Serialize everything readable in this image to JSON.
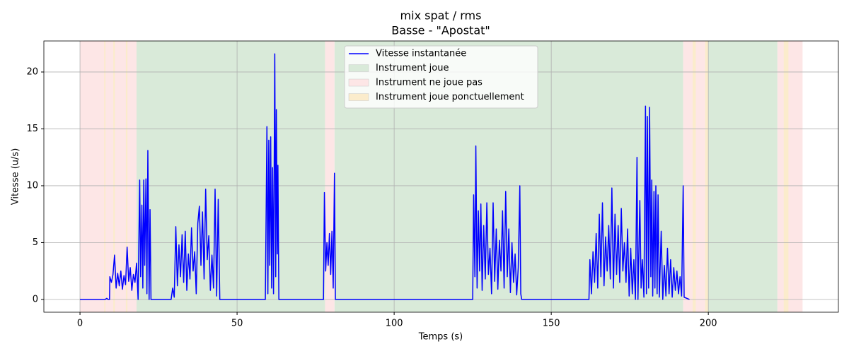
{
  "chart_data": {
    "type": "line",
    "title": "mix spat / rms",
    "subtitle": "Basse - \"Apostat\"",
    "xlabel": "Temps (s)",
    "ylabel": "Vitesse (u/s)",
    "xlim": [
      -11.5,
      241.4
    ],
    "ylim": [
      -1.12,
      22.73
    ],
    "xticks": [
      0,
      50,
      100,
      150,
      200
    ],
    "yticks": [
      0,
      5,
      10,
      15,
      20
    ],
    "grid": true,
    "legend": "upper center",
    "regions": [
      {
        "name": "Instrument joue",
        "color": "#d9ead9",
        "spans": [
          [
            18,
            78
          ],
          [
            81,
            192
          ],
          [
            200,
            222
          ]
        ]
      },
      {
        "name": "Instrument ne joue pas",
        "color": "#fde6e6",
        "spans": [
          [
            0,
            18
          ],
          [
            78,
            81
          ],
          [
            192,
            200
          ],
          [
            222,
            230
          ]
        ]
      },
      {
        "name": "Instrument joue ponctuellement",
        "color": "#fbeccc",
        "spans": [
          [
            7.7,
            8.1
          ],
          [
            10.6,
            11.1
          ],
          [
            14.6,
            15.1
          ],
          [
            195,
            196
          ],
          [
            199,
            200
          ],
          [
            224,
            225.5
          ]
        ]
      }
    ],
    "x": [
      0,
      8,
      8.5,
      9,
      9.4,
      9.5,
      10,
      10.5,
      11,
      11.5,
      12,
      12.5,
      13,
      13.5,
      14,
      14.5,
      15,
      15.5,
      16,
      16.5,
      17,
      17.5,
      18,
      18.5,
      19,
      19.3,
      19.7,
      20,
      20.3,
      20.6,
      21,
      21.3,
      21.6,
      22,
      22.3,
      22.6,
      29,
      29.5,
      30,
      30.5,
      31,
      31.5,
      32,
      32.5,
      33,
      33.5,
      34,
      34.5,
      35,
      35.5,
      36,
      36.5,
      37,
      37.5,
      38,
      38.5,
      39,
      39.5,
      40,
      40.5,
      41,
      41.5,
      42,
      42.5,
      43,
      43.5,
      44,
      44.5,
      59,
      59.5,
      59.8,
      60.1,
      60.4,
      60.7,
      61,
      61.3,
      61.6,
      62,
      62.3,
      62.5,
      62.8,
      63,
      63.3,
      77.5,
      77.8,
      78.2,
      78.6,
      79,
      79.4,
      79.8,
      80.2,
      80.6,
      81,
      81.3,
      125,
      125.3,
      125.7,
      126,
      126.4,
      126.8,
      127.2,
      127.6,
      128,
      128.5,
      129,
      129.5,
      130,
      130.5,
      131,
      131.5,
      132,
      132.5,
      133,
      133.5,
      134,
      134.5,
      135,
      135.5,
      136,
      136.5,
      137,
      137.5,
      138,
      138.5,
      139,
      139.5,
      140,
      140.3,
      140.6,
      162,
      162.3,
      162.8,
      163.3,
      163.8,
      164.3,
      164.8,
      165.3,
      165.8,
      166.3,
      166.8,
      167.3,
      167.8,
      168.3,
      168.8,
      169.3,
      169.8,
      170.3,
      170.8,
      171.3,
      171.8,
      172.3,
      172.8,
      173.3,
      173.8,
      174.3,
      174.8,
      175.3,
      175.8,
      176.3,
      176.8,
      177.3,
      177.6,
      178.2,
      178.6,
      179,
      179.5,
      180,
      180.3,
      180.6,
      181,
      181.3,
      181.7,
      182,
      182.3,
      182.7,
      183,
      183.3,
      183.7,
      184,
      184.4,
      185,
      185.5,
      186,
      186.5,
      187,
      187.5,
      188,
      188.5,
      189,
      189.5,
      190,
      190.5,
      191,
      191.5,
      192,
      192.3,
      194
    ],
    "series": [
      {
        "name": "Vitesse instantanée",
        "color": "#0000ff",
        "values": [
          0,
          0,
          0.1,
          0,
          0,
          2.0,
          1.5,
          2.2,
          3.9,
          1.0,
          2.3,
          1.2,
          2.5,
          0.9,
          2.1,
          1.3,
          4.6,
          1.6,
          2.8,
          0.8,
          2.2,
          1.5,
          3.2,
          0,
          10.5,
          2,
          8.3,
          1,
          10.5,
          3,
          10.6,
          0.5,
          13.1,
          0,
          7.9,
          0,
          0,
          1.0,
          0.2,
          6.4,
          1.2,
          4.8,
          2.0,
          5.7,
          1.5,
          6.0,
          0.8,
          4.0,
          1.8,
          6.3,
          2.5,
          4.2,
          0.5,
          6.7,
          8.2,
          3.0,
          7.7,
          1.8,
          9.7,
          3.5,
          5.6,
          0.8,
          3.9,
          1.0,
          9.7,
          0.3,
          8.8,
          0,
          0,
          15.2,
          0.5,
          14.0,
          3,
          14.3,
          1,
          11.6,
          0.5,
          21.6,
          2,
          16.7,
          4,
          11.8,
          0,
          0,
          9.4,
          2.5,
          5.0,
          3.0,
          5.8,
          2.2,
          6.0,
          1.0,
          11.1,
          0,
          0,
          9.2,
          2,
          13.5,
          1,
          7.8,
          2.5,
          8.4,
          0.8,
          6.5,
          1.8,
          8.5,
          2.2,
          4.5,
          0.5,
          8.5,
          1.6,
          6.2,
          0.9,
          5.2,
          2.5,
          7.8,
          1.0,
          9.5,
          2.0,
          6.2,
          0.6,
          5.0,
          1.5,
          4.0,
          0.4,
          2.8,
          10.0,
          0.5,
          0,
          0,
          3.5,
          0.5,
          4.2,
          1.5,
          5.8,
          1.0,
          7.5,
          2.0,
          8.5,
          1.2,
          5.5,
          2.5,
          6.5,
          1.8,
          9.8,
          1.0,
          7.5,
          2.2,
          6.5,
          1.5,
          8.0,
          2.5,
          5.0,
          1.5,
          6.2,
          0.3,
          4.5,
          0.5,
          3.5,
          0,
          12.5,
          0,
          8.7,
          1,
          3.5,
          0.2,
          17.0,
          0.5,
          16.1,
          1,
          16.9,
          2,
          10.5,
          0.3,
          9.5,
          1,
          10.0,
          0.5,
          9.2,
          0.2,
          6.0,
          0,
          3.0,
          0.3,
          4.5,
          0.5,
          3.5,
          0.2,
          2.8,
          0.8,
          2.5,
          0.5,
          2.0,
          0.3,
          10.0,
          0.2,
          0
        ]
      }
    ]
  }
}
